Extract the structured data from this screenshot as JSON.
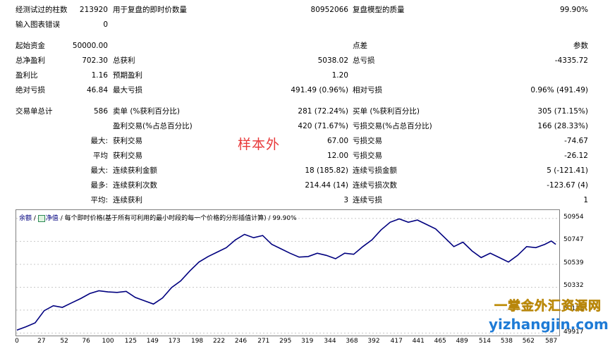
{
  "stats": {
    "row1": {
      "bars_label": "经测试过的柱数",
      "bars_value": "213920",
      "ticks_label": "用于复盘的即时价数量",
      "ticks_value": "80952066",
      "quality_label": "复盘模型的质量",
      "quality_value": "99.90%"
    },
    "row2": {
      "errors_label": "输入图表错误",
      "errors_value": "0"
    },
    "row3": {
      "deposit_label": "起始资金",
      "deposit_value": "50000.00",
      "spread_label": "点差",
      "spread_value": "参数"
    },
    "row4": {
      "net_label": "总净盈利",
      "net_value": "702.30",
      "gross_profit_label": "总获利",
      "gross_profit_value": "5038.02",
      "gross_loss_label": "总亏损",
      "gross_loss_value": "-4335.72"
    },
    "row5": {
      "pf_label": "盈利比",
      "pf_value": "1.16",
      "expected_label": "预期盈利",
      "expected_value": "1.20"
    },
    "row6": {
      "abs_dd_label": "绝对亏损",
      "abs_dd_value": "46.84",
      "max_dd_label": "最大亏损",
      "max_dd_value": "491.49 (0.96%)",
      "rel_dd_label": "相对亏损",
      "rel_dd_value": "0.96% (491.49)"
    },
    "row7": {
      "total_label": "交易单总计",
      "total_value": "586",
      "short_label": "卖单 (%获利百分比)",
      "short_value": "281 (72.24%)",
      "long_label": "买单 (%获利百分比)",
      "long_value": "305 (71.15%)"
    },
    "row8": {
      "profit_trades_label": "盈利交易(%占总百分比)",
      "profit_trades_value": "420 (71.67%)",
      "loss_trades_label": "亏损交易(%占总百分比)",
      "loss_trades_value": "166 (28.33%)"
    },
    "row9": {
      "prefix": "最大:",
      "largest_profit_label": "获利交易",
      "largest_profit_value": "67.00",
      "largest_loss_label": "亏损交易",
      "largest_loss_value": "-74.67"
    },
    "row10": {
      "prefix": "平均",
      "avg_profit_label": "获利交易",
      "avg_profit_value": "12.00",
      "avg_loss_label": "亏损交易",
      "avg_loss_value": "-26.12"
    },
    "row11": {
      "prefix": "最大:",
      "cons_wins_money_label": "连续获利金额",
      "cons_wins_money_value": "18 (185.82)",
      "cons_loss_money_label": "连续亏损金额",
      "cons_loss_money_value": "5 (-121.41)"
    },
    "row12": {
      "prefix": "最多:",
      "cons_profit_count_label": "连续获利次数",
      "cons_profit_count_value": "214.44 (14)",
      "cons_loss_count_label": "连续亏损次数",
      "cons_loss_count_value": "-123.67 (4)"
    },
    "row13": {
      "prefix": "平均:",
      "avg_cons_wins_label": "连续获利",
      "avg_cons_wins_value": "3",
      "avg_cons_loss_label": "连续亏损",
      "avg_cons_loss_value": "1"
    }
  },
  "watermark_text": "样本外",
  "chart_header": {
    "tab1": "余额",
    "tab2": "净值",
    "caption": "/ 每个即时价格(基于所有可利用的最小时段的每一个价格的分形插值计算) / 99.90%"
  },
  "brand": {
    "cn": "一掌金外汇资源网",
    "url": "yizhangjin.com"
  },
  "colors": {
    "line": "#00007f",
    "watermark": "#e8393a",
    "brand_cn": "#f6d200",
    "brand_url": "#1e7bd6"
  },
  "chart_data": {
    "type": "line",
    "y_ticks": [
      "50954",
      "50747",
      "50539",
      "50332",
      "50125",
      "49917"
    ],
    "x_ticks": [
      "0",
      "27",
      "52",
      "76",
      "100",
      "125",
      "149",
      "173",
      "198",
      "222",
      "246",
      "271",
      "295",
      "319",
      "344",
      "368",
      "392",
      "417",
      "441",
      "465",
      "489",
      "514",
      "538",
      "562",
      "587"
    ],
    "xlim": [
      0,
      595
    ],
    "ylim": [
      49895,
      51030
    ],
    "series": [
      {
        "points": [
          [
            0,
            49945
          ],
          [
            10,
            49975
          ],
          [
            20,
            50010
          ],
          [
            30,
            50120
          ],
          [
            40,
            50165
          ],
          [
            50,
            50150
          ],
          [
            60,
            50190
          ],
          [
            70,
            50230
          ],
          [
            80,
            50275
          ],
          [
            90,
            50300
          ],
          [
            100,
            50290
          ],
          [
            110,
            50285
          ],
          [
            120,
            50295
          ],
          [
            130,
            50240
          ],
          [
            140,
            50210
          ],
          [
            150,
            50180
          ],
          [
            160,
            50235
          ],
          [
            170,
            50330
          ],
          [
            180,
            50390
          ],
          [
            190,
            50480
          ],
          [
            200,
            50560
          ],
          [
            210,
            50610
          ],
          [
            220,
            50650
          ],
          [
            230,
            50690
          ],
          [
            240,
            50760
          ],
          [
            250,
            50810
          ],
          [
            260,
            50780
          ],
          [
            270,
            50800
          ],
          [
            280,
            50720
          ],
          [
            290,
            50680
          ],
          [
            300,
            50640
          ],
          [
            310,
            50605
          ],
          [
            320,
            50610
          ],
          [
            330,
            50640
          ],
          [
            340,
            50620
          ],
          [
            350,
            50590
          ],
          [
            360,
            50640
          ],
          [
            370,
            50630
          ],
          [
            380,
            50700
          ],
          [
            390,
            50760
          ],
          [
            400,
            50850
          ],
          [
            410,
            50920
          ],
          [
            420,
            50950
          ],
          [
            430,
            50920
          ],
          [
            440,
            50940
          ],
          [
            450,
            50900
          ],
          [
            460,
            50860
          ],
          [
            470,
            50780
          ],
          [
            480,
            50700
          ],
          [
            490,
            50740
          ],
          [
            500,
            50660
          ],
          [
            510,
            50600
          ],
          [
            520,
            50640
          ],
          [
            530,
            50600
          ],
          [
            540,
            50560
          ],
          [
            550,
            50620
          ],
          [
            560,
            50700
          ],
          [
            570,
            50690
          ],
          [
            580,
            50720
          ],
          [
            587,
            50750
          ],
          [
            592,
            50720
          ]
        ]
      }
    ]
  }
}
